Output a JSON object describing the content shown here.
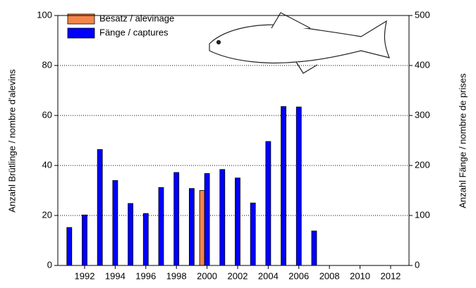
{
  "chart_data": {
    "type": "bar",
    "y_label": "Anzahl Brütlinge / nombre d'alevins",
    "y2_label": "Anzahl Fänge / nombre de prises",
    "series": [
      {
        "name": "Besatz / alevinage",
        "color": "#f4854a",
        "x": [
          2000
        ],
        "values": [
          30
        ]
      },
      {
        "name": "Fänge / captures",
        "color": "#0000ff",
        "axis": "y2",
        "x": [
          1991,
          1992,
          1993,
          1994,
          1995,
          1996,
          1997,
          1998,
          1999,
          2000,
          2001,
          2002,
          2003,
          2004,
          2005,
          2006,
          2007
        ],
        "values": [
          76,
          101,
          232,
          170,
          124,
          104,
          156,
          186,
          154,
          184,
          192,
          175,
          125,
          248,
          318,
          317,
          69
        ]
      }
    ],
    "xlim": [
      1990.25,
      2013.2
    ],
    "xticks": [
      1992,
      1994,
      1996,
      1998,
      2000,
      2002,
      2004,
      2006,
      2008,
      2010,
      2012
    ],
    "ylim": [
      0,
      100
    ],
    "yticks": [
      0,
      20,
      40,
      60,
      80,
      100
    ],
    "y2lim": [
      0,
      500
    ],
    "y2ticks": [
      0,
      100,
      200,
      300,
      400,
      500
    ],
    "grid": true,
    "legend": "upper-left"
  }
}
